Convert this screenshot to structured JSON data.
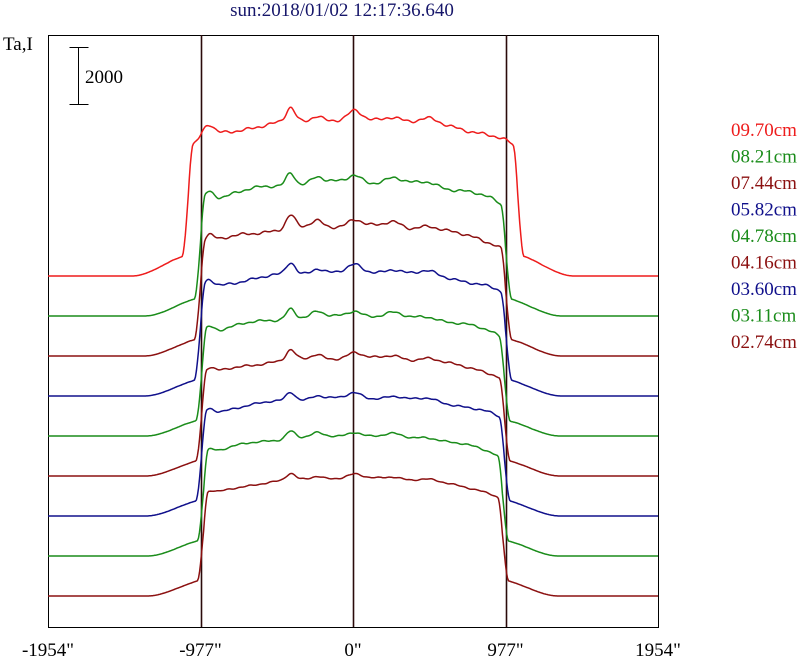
{
  "chart_data": {
    "type": "line",
    "title": "sun:2018/01/02 12:17:36.640",
    "ylabel": "Ta,I",
    "scale_bar_label": "2000",
    "x_tick_labels": [
      "-1954\"",
      "-977\"",
      "0\"",
      "977\"",
      "1954\""
    ],
    "x_ticks": [
      -1954,
      -977,
      0,
      977,
      1954
    ],
    "xlim": [
      -1954,
      1954
    ],
    "x_unit": "arcsec",
    "vertical_lines_at": [
      -977,
      0,
      977
    ],
    "scale_bar_value": 2000,
    "grid": false,
    "legend_position": "right",
    "series": [
      {
        "name": "09.70cm",
        "color": "#ee1c1c",
        "baseline": 8,
        "peak": 11.9,
        "limb": 1.08,
        "ripple": 0.22
      },
      {
        "name": "08.21cm",
        "color": "#1a8c1a",
        "baseline": 7,
        "peak": 10.35,
        "limb": 1.0,
        "ripple": 0.2
      },
      {
        "name": "07.44cm",
        "color": "#8b1010",
        "baseline": 6,
        "peak": 9.25,
        "limb": 1.0,
        "ripple": 0.2
      },
      {
        "name": "05.82cm",
        "color": "#10108b",
        "baseline": 5,
        "peak": 8.1,
        "limb": 1.0,
        "ripple": 0.18
      },
      {
        "name": "04.78cm",
        "color": "#1a8c1a",
        "baseline": 4,
        "peak": 7.0,
        "limb": 0.99,
        "ripple": 0.16
      },
      {
        "name": "04.16cm",
        "color": "#8b1010",
        "baseline": 3,
        "peak": 5.95,
        "limb": 0.99,
        "ripple": 0.15
      },
      {
        "name": "03.60cm",
        "color": "#10108b",
        "baseline": 2,
        "peak": 4.95,
        "limb": 0.99,
        "ripple": 0.13
      },
      {
        "name": "03.11cm",
        "color": "#1a8c1a",
        "baseline": 1,
        "peak": 4.0,
        "limb": 0.98,
        "ripple": 0.12
      },
      {
        "name": "02.74cm",
        "color": "#8b1010",
        "baseline": 0,
        "peak": 2.95,
        "limb": 0.98,
        "ripple": 0.1
      }
    ]
  }
}
